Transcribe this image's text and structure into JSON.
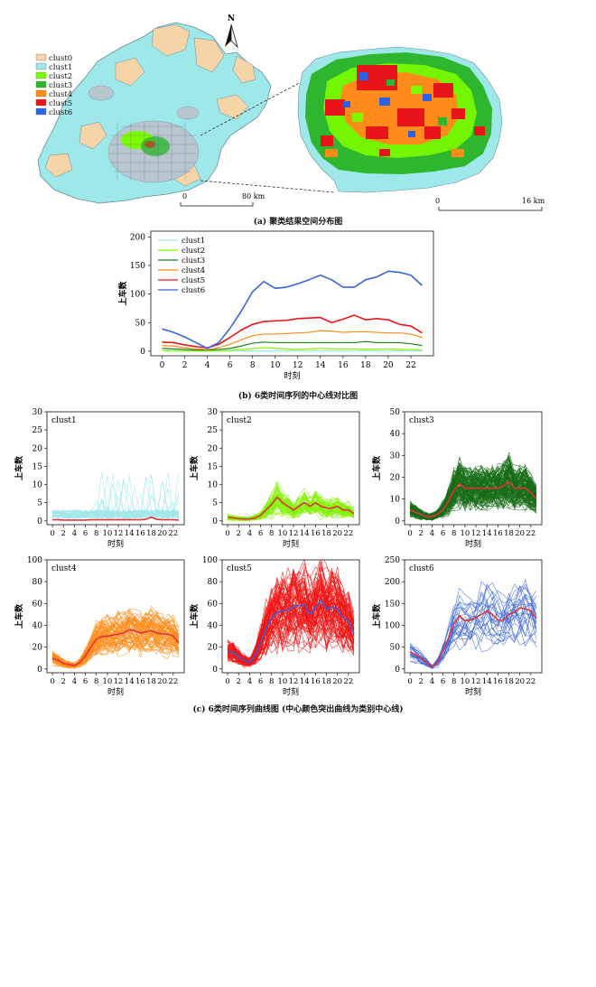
{
  "map": {
    "legend": [
      {
        "label": "clust0",
        "color": "#f5d5a8"
      },
      {
        "label": "clust1",
        "color": "#9fe8ea"
      },
      {
        "label": "clust2",
        "color": "#7cfc00"
      },
      {
        "label": "clust3",
        "color": "#2fb62f"
      },
      {
        "label": "clust4",
        "color": "#ff8c1a"
      },
      {
        "label": "clust5",
        "color": "#e8141a"
      },
      {
        "label": "clust6",
        "color": "#2e62e6"
      }
    ],
    "north": "N",
    "scale_left": {
      "start": "0",
      "end": "80 km"
    },
    "scale_right": {
      "start": "0",
      "end": "16 km"
    },
    "caption": "(a) 聚类结果空间分布图"
  },
  "center": {
    "caption": "(b) 6类时间序列的中心线对比图",
    "xlabel": "时刻",
    "ylabel": "上车数"
  },
  "small": {
    "caption": "(c) 6类时间序列曲线图 (中心颜色突出曲线为类别中心线)",
    "xlabel": "时刻",
    "ylabel": "上车数"
  },
  "chart_data": [
    {
      "type": "line",
      "title": "",
      "xlabel": "时刻",
      "ylabel": "上车数",
      "x": [
        0,
        1,
        2,
        3,
        4,
        5,
        6,
        7,
        8,
        9,
        10,
        11,
        12,
        13,
        14,
        15,
        16,
        17,
        18,
        19,
        20,
        21,
        22,
        23
      ],
      "xticks": [
        0,
        2,
        4,
        6,
        8,
        10,
        12,
        14,
        16,
        18,
        20,
        22
      ],
      "yticks": [
        0,
        50,
        100,
        150,
        200
      ],
      "ylim": [
        0,
        200
      ],
      "legend": "top-left",
      "series": [
        {
          "name": "clust1",
          "color": "#9fe8ea",
          "values": [
            1,
            1,
            0.5,
            0.5,
            0.5,
            0.5,
            0.5,
            0.5,
            0.5,
            0.5,
            0.5,
            0.5,
            0.5,
            0.5,
            0.5,
            0.5,
            0.5,
            0.5,
            1,
            0.5,
            0.5,
            0.5,
            0.5,
            0.5
          ]
        },
        {
          "name": "clust2",
          "color": "#7cfc00",
          "values": [
            1,
            0.8,
            0.6,
            0.5,
            0.5,
            0.8,
            1.5,
            3,
            4.5,
            6,
            5,
            4,
            3,
            4,
            5,
            4,
            4,
            4,
            3.5,
            3.5,
            4,
            3,
            3,
            2
          ]
        },
        {
          "name": "clust3",
          "color": "#1e7f1e",
          "values": [
            5,
            4,
            3,
            2,
            2,
            3,
            5,
            9,
            14,
            16,
            15,
            15,
            15,
            15,
            15,
            15,
            15,
            15,
            17,
            15,
            15,
            15,
            13,
            10
          ]
        },
        {
          "name": "clust4",
          "color": "#ff8c1a",
          "values": [
            10,
            9,
            6,
            4,
            3,
            6,
            12,
            20,
            27,
            30,
            30,
            31,
            32,
            33,
            36,
            35,
            33,
            34,
            34,
            33,
            32,
            32,
            30,
            24
          ]
        },
        {
          "name": "clust5",
          "color": "#e8141a",
          "values": [
            16,
            15,
            11,
            8,
            6,
            12,
            24,
            37,
            47,
            52,
            53,
            54,
            57,
            58,
            59,
            50,
            56,
            63,
            55,
            57,
            55,
            47,
            44,
            32
          ]
        },
        {
          "name": "clust6",
          "color": "#3a66d8",
          "values": [
            39,
            33,
            25,
            15,
            5,
            15,
            40,
            70,
            104,
            122,
            110,
            112,
            118,
            125,
            133,
            125,
            112,
            112,
            125,
            130,
            140,
            138,
            133,
            115
          ]
        }
      ]
    },
    {
      "type": "line",
      "title": "clust1",
      "xlabel": "时刻",
      "ylabel": "上车数",
      "ylim": [
        0,
        30
      ],
      "yticks": [
        0,
        5,
        10,
        15,
        20,
        25,
        30
      ],
      "xticks": [
        0,
        2,
        4,
        6,
        8,
        10,
        12,
        14,
        16,
        18,
        20,
        22
      ],
      "band_color": "#9fe8ea",
      "center_color": "#e0323a",
      "center": [
        0.3,
        0.3,
        0.2,
        0.2,
        0.2,
        0.2,
        0.2,
        0.3,
        0.3,
        0.3,
        0.3,
        0.3,
        0.3,
        0.3,
        0.3,
        0.3,
        0.3,
        0.4,
        1,
        0.4,
        0.3,
        0.3,
        0.3,
        0.2
      ]
    },
    {
      "type": "line",
      "title": "clust2",
      "xlabel": "时刻",
      "ylabel": "上车数",
      "ylim": [
        0,
        30
      ],
      "yticks": [
        0,
        5,
        10,
        15,
        20,
        25,
        30
      ],
      "xticks": [
        0,
        2,
        4,
        6,
        8,
        10,
        12,
        14,
        16,
        18,
        20,
        22
      ],
      "band_color": "#86f20a",
      "center_color": "#e0323a",
      "center": [
        1,
        0.8,
        0.6,
        0.5,
        0.5,
        0.8,
        1.5,
        3,
        4.5,
        6.5,
        5,
        4,
        3,
        4,
        5,
        4,
        5,
        4,
        3.5,
        3.5,
        4,
        3,
        3,
        2
      ]
    },
    {
      "type": "line",
      "title": "clust3",
      "xlabel": "时刻",
      "ylabel": "上车数",
      "ylim": [
        0,
        50
      ],
      "yticks": [
        0,
        10,
        20,
        30,
        40,
        50
      ],
      "xticks": [
        0,
        2,
        4,
        6,
        8,
        10,
        12,
        14,
        16,
        18,
        20,
        22
      ],
      "band_color": "#176d17",
      "center_color": "#e0323a",
      "center": [
        5,
        4,
        3,
        2,
        2,
        3,
        5,
        9,
        14,
        17,
        15,
        15,
        15,
        15,
        15,
        15,
        15,
        16,
        18,
        15,
        15,
        15,
        13,
        10
      ]
    },
    {
      "type": "line",
      "title": "clust4",
      "xlabel": "时刻",
      "ylabel": "上车数",
      "ylim": [
        0,
        100
      ],
      "yticks": [
        0,
        20,
        40,
        60,
        80,
        100
      ],
      "xticks": [
        0,
        2,
        4,
        6,
        8,
        10,
        12,
        14,
        16,
        18,
        20,
        22
      ],
      "band_color": "#ff8c1a",
      "center_color": "#e0323a",
      "center": [
        10,
        8,
        5,
        4,
        3,
        6,
        12,
        20,
        27,
        30,
        30,
        31,
        32,
        33,
        36,
        35,
        33,
        34,
        35,
        33,
        32,
        32,
        30,
        24
      ]
    },
    {
      "type": "line",
      "title": "clust5",
      "xlabel": "时刻",
      "ylabel": "上车数",
      "ylim": [
        0,
        100
      ],
      "yticks": [
        0,
        20,
        40,
        60,
        80,
        100
      ],
      "xticks": [
        0,
        2,
        4,
        6,
        8,
        10,
        12,
        14,
        16,
        18,
        20,
        22
      ],
      "band_color": "#f21414",
      "center_color": "#3a5fd6",
      "center": [
        16,
        15,
        11,
        8,
        6,
        12,
        24,
        37,
        47,
        52,
        53,
        54,
        57,
        58,
        59,
        50,
        56,
        63,
        55,
        57,
        55,
        47,
        44,
        32
      ]
    },
    {
      "type": "line",
      "title": "clust6",
      "xlabel": "时刻",
      "ylabel": "上车数",
      "ylim": [
        0,
        250
      ],
      "yticks": [
        0,
        50,
        100,
        150,
        200,
        250
      ],
      "xticks": [
        0,
        2,
        4,
        6,
        8,
        10,
        12,
        14,
        16,
        18,
        20,
        22
      ],
      "band_color": "#3a66d8",
      "center_color": "#e0323a",
      "center": [
        39,
        33,
        25,
        15,
        5,
        15,
        40,
        70,
        104,
        122,
        110,
        112,
        118,
        125,
        133,
        125,
        112,
        112,
        125,
        130,
        140,
        138,
        133,
        115
      ]
    }
  ]
}
